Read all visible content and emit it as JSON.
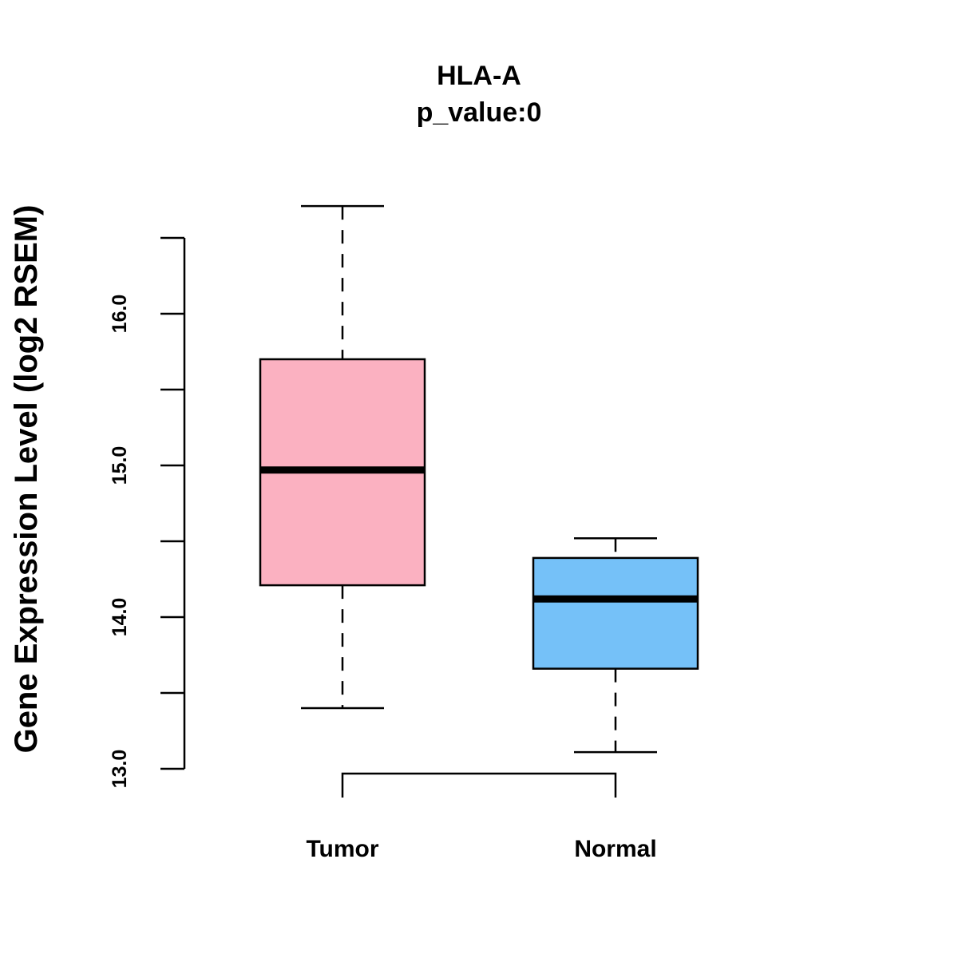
{
  "chart_data": {
    "type": "boxplot",
    "title": "HLA-A",
    "subtitle": "p_value:0",
    "xlabel": "",
    "ylabel": "Gene Expression Level (log2 RSEM)",
    "ylim": [
      12.9,
      16.65
    ],
    "y_axis_range": [
      13.0,
      16.5
    ],
    "y_ticks": [
      13.0,
      13.5,
      14.0,
      14.5,
      15.0,
      15.5,
      16.0,
      16.5
    ],
    "y_tick_labels": [
      "13.0",
      "",
      "14.0",
      "",
      "15.0",
      "",
      "16.0",
      ""
    ],
    "categories": [
      "Tumor",
      "Normal"
    ],
    "series": [
      {
        "name": "Tumor",
        "color": "#FBB1C1",
        "whisker_low": 13.4,
        "q1": 14.21,
        "median": 14.97,
        "q3": 15.7,
        "whisker_high": 16.71
      },
      {
        "name": "Normal",
        "color": "#75C1F8",
        "whisker_low": 13.11,
        "q1": 13.66,
        "median": 14.12,
        "q3": 14.39,
        "whisker_high": 14.52
      }
    ],
    "significance_bracket": {
      "from": "Tumor",
      "to": "Normal",
      "label": ""
    }
  }
}
